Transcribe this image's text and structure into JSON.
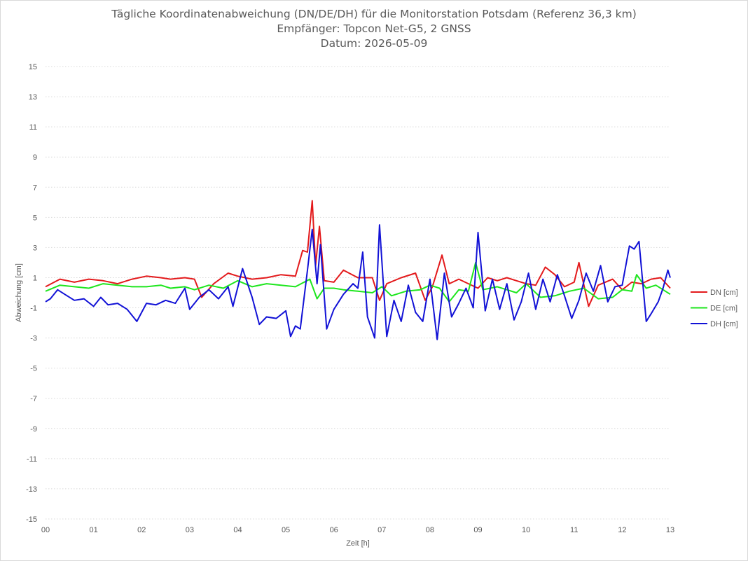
{
  "chart_data": {
    "type": "line",
    "title": "Tägliche Koordinatenabweichung (DN/DE/DH) für die Monitorstation Potsdam (Referenz 36,3 km)",
    "subtitle": "Empfänger: Topcon Net-G5, 2 GNSS",
    "subtitle2": "Datum: 2026-05-09",
    "xlabel": "Zeit [h]",
    "ylabel": "Abweichung [cm]",
    "xlim": [
      0,
      13
    ],
    "ylim": [
      -15,
      15
    ],
    "xticks": [
      "00",
      "01",
      "02",
      "03",
      "04",
      "05",
      "06",
      "07",
      "08",
      "09",
      "10",
      "11",
      "12",
      "13"
    ],
    "yticks": [
      "15",
      "13",
      "11",
      "9",
      "7",
      "5",
      "3",
      "1",
      "-1",
      "-3",
      "-5",
      "-7",
      "-9",
      "-11",
      "-13",
      "-15"
    ],
    "grid": "horizontal-dotted",
    "legend_position": "right",
    "series": [
      {
        "name": "DN [cm]",
        "color": "#e31a1c",
        "points": [
          [
            0,
            0.4
          ],
          [
            0.3,
            0.9
          ],
          [
            0.6,
            0.7
          ],
          [
            0.9,
            0.9
          ],
          [
            1.2,
            0.8
          ],
          [
            1.5,
            0.6
          ],
          [
            1.8,
            0.9
          ],
          [
            2.1,
            1.1
          ],
          [
            2.4,
            1.0
          ],
          [
            2.6,
            0.9
          ],
          [
            2.9,
            1.0
          ],
          [
            3.1,
            0.9
          ],
          [
            3.25,
            -0.3
          ],
          [
            3.5,
            0.6
          ],
          [
            3.8,
            1.3
          ],
          [
            4.0,
            1.1
          ],
          [
            4.3,
            0.9
          ],
          [
            4.6,
            1.0
          ],
          [
            4.9,
            1.2
          ],
          [
            5.2,
            1.1
          ],
          [
            5.35,
            2.8
          ],
          [
            5.45,
            2.7
          ],
          [
            5.55,
            6.1
          ],
          [
            5.62,
            1.8
          ],
          [
            5.7,
            4.4
          ],
          [
            5.8,
            0.8
          ],
          [
            6.0,
            0.7
          ],
          [
            6.2,
            1.5
          ],
          [
            6.5,
            1.0
          ],
          [
            6.8,
            1.0
          ],
          [
            6.95,
            -0.5
          ],
          [
            7.1,
            0.6
          ],
          [
            7.4,
            1.0
          ],
          [
            7.7,
            1.3
          ],
          [
            7.9,
            -0.5
          ],
          [
            8.05,
            0.4
          ],
          [
            8.25,
            2.5
          ],
          [
            8.4,
            0.6
          ],
          [
            8.6,
            0.9
          ],
          [
            8.8,
            0.6
          ],
          [
            9.0,
            0.3
          ],
          [
            9.2,
            1.0
          ],
          [
            9.4,
            0.8
          ],
          [
            9.6,
            1.0
          ],
          [
            9.8,
            0.8
          ],
          [
            10.0,
            0.6
          ],
          [
            10.2,
            0.5
          ],
          [
            10.4,
            1.7
          ],
          [
            10.6,
            1.2
          ],
          [
            10.8,
            0.4
          ],
          [
            11.0,
            0.7
          ],
          [
            11.1,
            2.0
          ],
          [
            11.3,
            -0.9
          ],
          [
            11.5,
            0.5
          ],
          [
            11.8,
            0.9
          ],
          [
            12.0,
            0.2
          ],
          [
            12.2,
            0.7
          ],
          [
            12.4,
            0.6
          ],
          [
            12.6,
            0.9
          ],
          [
            12.8,
            1.0
          ],
          [
            13.0,
            0.3
          ]
        ]
      },
      {
        "name": "DE [cm]",
        "color": "#1ee61e",
        "points": [
          [
            0,
            0.1
          ],
          [
            0.3,
            0.5
          ],
          [
            0.6,
            0.4
          ],
          [
            0.9,
            0.3
          ],
          [
            1.2,
            0.6
          ],
          [
            1.5,
            0.5
          ],
          [
            1.8,
            0.4
          ],
          [
            2.1,
            0.4
          ],
          [
            2.4,
            0.5
          ],
          [
            2.6,
            0.3
          ],
          [
            2.9,
            0.4
          ],
          [
            3.1,
            0.2
          ],
          [
            3.4,
            0.5
          ],
          [
            3.7,
            0.3
          ],
          [
            4.0,
            0.8
          ],
          [
            4.3,
            0.4
          ],
          [
            4.6,
            0.6
          ],
          [
            4.9,
            0.5
          ],
          [
            5.2,
            0.4
          ],
          [
            5.5,
            0.9
          ],
          [
            5.65,
            -0.4
          ],
          [
            5.8,
            0.3
          ],
          [
            6.0,
            0.3
          ],
          [
            6.2,
            0.2
          ],
          [
            6.5,
            0.1
          ],
          [
            6.8,
            0.0
          ],
          [
            7.0,
            0.4
          ],
          [
            7.2,
            -0.2
          ],
          [
            7.5,
            0.1
          ],
          [
            7.8,
            0.2
          ],
          [
            8.0,
            0.5
          ],
          [
            8.2,
            0.3
          ],
          [
            8.4,
            -0.6
          ],
          [
            8.6,
            0.2
          ],
          [
            8.8,
            0.1
          ],
          [
            8.95,
            2.0
          ],
          [
            9.1,
            0.2
          ],
          [
            9.4,
            0.4
          ],
          [
            9.6,
            0.2
          ],
          [
            9.8,
            0.0
          ],
          [
            10.0,
            0.6
          ],
          [
            10.3,
            -0.3
          ],
          [
            10.6,
            -0.2
          ],
          [
            10.9,
            0.1
          ],
          [
            11.2,
            0.3
          ],
          [
            11.5,
            -0.4
          ],
          [
            11.8,
            -0.3
          ],
          [
            12.0,
            0.2
          ],
          [
            12.2,
            0.1
          ],
          [
            12.3,
            1.2
          ],
          [
            12.5,
            0.3
          ],
          [
            12.7,
            0.5
          ],
          [
            12.9,
            0.1
          ],
          [
            13.0,
            -0.1
          ]
        ]
      },
      {
        "name": "DH [cm]",
        "color": "#1212d6",
        "points": [
          [
            0,
            -0.6
          ],
          [
            0.1,
            -0.4
          ],
          [
            0.25,
            0.2
          ],
          [
            0.4,
            -0.1
          ],
          [
            0.6,
            -0.5
          ],
          [
            0.8,
            -0.4
          ],
          [
            1.0,
            -0.9
          ],
          [
            1.15,
            -0.3
          ],
          [
            1.3,
            -0.8
          ],
          [
            1.5,
            -0.7
          ],
          [
            1.7,
            -1.1
          ],
          [
            1.9,
            -1.9
          ],
          [
            2.1,
            -0.7
          ],
          [
            2.3,
            -0.8
          ],
          [
            2.5,
            -0.5
          ],
          [
            2.7,
            -0.7
          ],
          [
            2.9,
            0.3
          ],
          [
            3.0,
            -1.1
          ],
          [
            3.2,
            -0.3
          ],
          [
            3.4,
            0.2
          ],
          [
            3.6,
            -0.4
          ],
          [
            3.8,
            0.4
          ],
          [
            3.9,
            -0.9
          ],
          [
            4.1,
            1.6
          ],
          [
            4.3,
            -0.3
          ],
          [
            4.45,
            -2.1
          ],
          [
            4.6,
            -1.6
          ],
          [
            4.8,
            -1.7
          ],
          [
            5.0,
            -1.2
          ],
          [
            5.1,
            -2.9
          ],
          [
            5.2,
            -2.2
          ],
          [
            5.3,
            -2.4
          ],
          [
            5.45,
            1.5
          ],
          [
            5.55,
            4.2
          ],
          [
            5.65,
            0.6
          ],
          [
            5.72,
            3.2
          ],
          [
            5.85,
            -2.4
          ],
          [
            6.0,
            -1.1
          ],
          [
            6.2,
            -0.1
          ],
          [
            6.4,
            0.6
          ],
          [
            6.5,
            0.3
          ],
          [
            6.6,
            2.7
          ],
          [
            6.7,
            -1.6
          ],
          [
            6.85,
            -3.0
          ],
          [
            6.95,
            4.5
          ],
          [
            7.1,
            -2.9
          ],
          [
            7.25,
            -0.5
          ],
          [
            7.4,
            -1.9
          ],
          [
            7.55,
            0.5
          ],
          [
            7.7,
            -1.3
          ],
          [
            7.85,
            -1.9
          ],
          [
            8.0,
            0.9
          ],
          [
            8.15,
            -3.1
          ],
          [
            8.3,
            1.3
          ],
          [
            8.45,
            -1.6
          ],
          [
            8.6,
            -0.7
          ],
          [
            8.75,
            0.3
          ],
          [
            8.9,
            -1.0
          ],
          [
            9.0,
            4.0
          ],
          [
            9.15,
            -1.2
          ],
          [
            9.3,
            0.9
          ],
          [
            9.45,
            -1.1
          ],
          [
            9.6,
            0.6
          ],
          [
            9.75,
            -1.8
          ],
          [
            9.9,
            -0.6
          ],
          [
            10.05,
            1.3
          ],
          [
            10.2,
            -1.1
          ],
          [
            10.35,
            0.9
          ],
          [
            10.5,
            -0.6
          ],
          [
            10.65,
            1.2
          ],
          [
            10.8,
            -0.2
          ],
          [
            10.95,
            -1.7
          ],
          [
            11.1,
            -0.5
          ],
          [
            11.25,
            1.3
          ],
          [
            11.4,
            0.1
          ],
          [
            11.55,
            1.8
          ],
          [
            11.7,
            -0.6
          ],
          [
            11.85,
            0.4
          ],
          [
            12.0,
            0.5
          ],
          [
            12.15,
            3.1
          ],
          [
            12.25,
            2.9
          ],
          [
            12.35,
            3.4
          ],
          [
            12.5,
            -1.9
          ],
          [
            12.6,
            -1.4
          ],
          [
            12.75,
            -0.6
          ],
          [
            12.85,
            0.3
          ],
          [
            12.95,
            1.5
          ],
          [
            13.0,
            1.0
          ]
        ]
      }
    ]
  }
}
